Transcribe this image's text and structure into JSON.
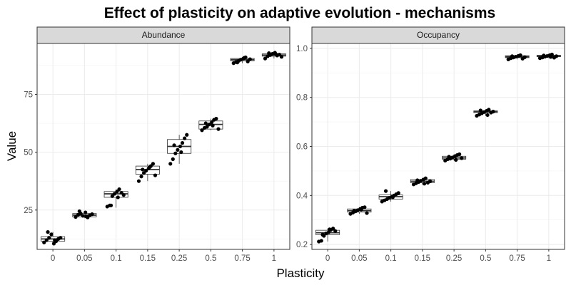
{
  "chart_data": {
    "type": "boxplot",
    "title": "Effect of plasticity on adaptive evolution - mechanisms",
    "xlabel": "Plasticity",
    "ylabel": "Value",
    "categories": [
      "0",
      "0.05",
      "0.1",
      "0.15",
      "0.25",
      "0.5",
      "0.75",
      "1"
    ],
    "grid": true,
    "panels": [
      {
        "name": "Abundance",
        "ylim": [
          8,
          97
        ],
        "yticks": [
          25,
          50,
          75
        ],
        "ytick_labels": [
          "25",
          "50",
          "75"
        ],
        "boxes": [
          {
            "q1": 11.5,
            "median": 12.5,
            "q3": 13.5,
            "min": 10.5,
            "max": 15.5
          },
          {
            "q1": 22.0,
            "median": 22.8,
            "q3": 23.5,
            "min": 21.5,
            "max": 24.5
          },
          {
            "q1": 30.5,
            "median": 32.0,
            "q3": 33.0,
            "min": 26.0,
            "max": 34.0
          },
          {
            "q1": 40.5,
            "median": 42.5,
            "q3": 44.0,
            "min": 37.5,
            "max": 45.0
          },
          {
            "q1": 49.5,
            "median": 52.5,
            "q3": 55.5,
            "min": 45.0,
            "max": 57.5
          },
          {
            "q1": 60.0,
            "median": 62.0,
            "q3": 63.5,
            "min": 59.5,
            "max": 64.5
          },
          {
            "q1": 89.5,
            "median": 90.0,
            "q3": 90.5,
            "min": 88.5,
            "max": 91.0
          },
          {
            "q1": 91.5,
            "median": 92.0,
            "q3": 92.5,
            "min": 90.5,
            "max": 93.0
          }
        ],
        "points": [
          [
            11,
            12,
            13,
            14.5,
            10.5,
            11.5,
            12.5,
            13,
            15.5,
            12
          ],
          [
            22,
            23,
            23.5,
            22.5,
            24,
            21.8,
            22.8,
            23.2,
            24.5,
            22.2
          ],
          [
            26.5,
            27,
            31,
            32,
            33,
            34,
            32.5,
            31.5,
            27,
            30.5
          ],
          [
            37.5,
            39.5,
            41,
            42,
            43,
            44,
            45,
            40,
            42.5,
            43.5
          ],
          [
            45,
            47,
            49.5,
            51,
            52.5,
            54,
            56,
            57.5,
            53,
            50
          ],
          [
            59.5,
            60.5,
            61,
            62,
            63,
            64,
            64.5,
            60,
            62.5,
            61.5
          ],
          [
            88.5,
            89,
            89.5,
            90,
            90.5,
            91,
            89.2,
            90.2,
            88.8,
            90.8
          ],
          [
            90.5,
            91.5,
            92,
            92.5,
            93,
            91.8,
            92.2,
            91.2,
            92.8,
            92.4
          ]
        ]
      },
      {
        "name": "Occupancy",
        "ylim": [
          0.18,
          1.02
        ],
        "yticks": [
          0.2,
          0.4,
          0.6,
          0.8,
          1.0
        ],
        "ytick_labels": [
          "0.2",
          "0.4",
          "0.6",
          "0.8",
          "1.0"
        ],
        "boxes": [
          {
            "q1": 0.24,
            "median": 0.248,
            "q3": 0.258,
            "min": 0.212,
            "max": 0.265
          },
          {
            "q1": 0.332,
            "median": 0.338,
            "q3": 0.345,
            "min": 0.325,
            "max": 0.352
          },
          {
            "q1": 0.385,
            "median": 0.395,
            "q3": 0.402,
            "min": 0.375,
            "max": 0.418
          },
          {
            "q1": 0.452,
            "median": 0.458,
            "q3": 0.465,
            "min": 0.445,
            "max": 0.47
          },
          {
            "q1": 0.548,
            "median": 0.553,
            "q3": 0.56,
            "min": 0.542,
            "max": 0.568
          },
          {
            "q1": 0.738,
            "median": 0.742,
            "q3": 0.745,
            "min": 0.725,
            "max": 0.75
          },
          {
            "q1": 0.962,
            "median": 0.966,
            "q3": 0.97,
            "min": 0.955,
            "max": 0.972
          },
          {
            "q1": 0.966,
            "median": 0.969,
            "q3": 0.972,
            "min": 0.96,
            "max": 0.975
          }
        ],
        "points": [
          [
            0.212,
            0.215,
            0.235,
            0.245,
            0.25,
            0.26,
            0.265,
            0.255,
            0.24,
            0.262
          ],
          [
            0.325,
            0.33,
            0.335,
            0.34,
            0.345,
            0.35,
            0.352,
            0.328,
            0.338,
            0.342
          ],
          [
            0.375,
            0.38,
            0.385,
            0.39,
            0.395,
            0.4,
            0.405,
            0.41,
            0.418,
            0.392
          ],
          [
            0.445,
            0.45,
            0.455,
            0.46,
            0.465,
            0.47,
            0.452,
            0.458,
            0.462,
            0.448
          ],
          [
            0.542,
            0.548,
            0.55,
            0.555,
            0.56,
            0.565,
            0.568,
            0.552,
            0.558,
            0.545
          ],
          [
            0.725,
            0.73,
            0.735,
            0.74,
            0.745,
            0.75,
            0.738,
            0.742,
            0.747,
            0.728
          ],
          [
            0.955,
            0.96,
            0.963,
            0.966,
            0.969,
            0.972,
            0.958,
            0.964,
            0.968,
            0.97
          ],
          [
            0.96,
            0.963,
            0.966,
            0.969,
            0.972,
            0.975,
            0.962,
            0.968,
            0.971,
            0.965
          ]
        ]
      }
    ]
  }
}
